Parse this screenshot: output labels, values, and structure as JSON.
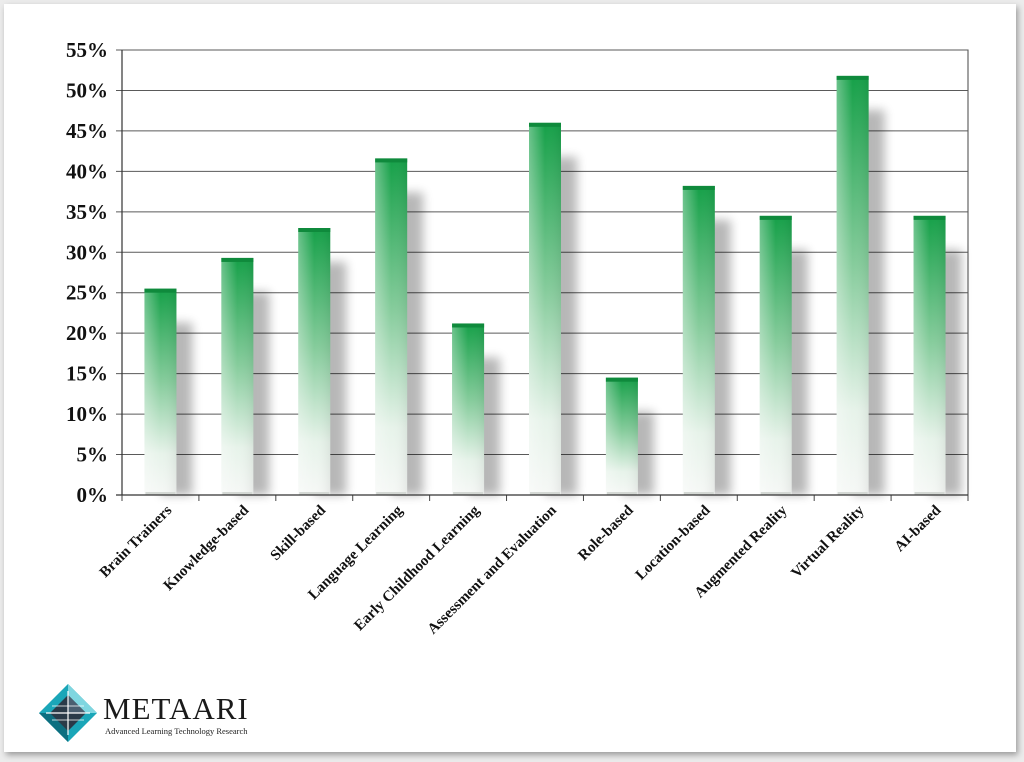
{
  "chart_data": {
    "type": "bar",
    "title": "",
    "xlabel": "",
    "ylabel": "",
    "categories": [
      "Brain Trainers",
      "Knowledge-based",
      "Skill-based",
      "Language Learning",
      "Early Childhood Learning",
      "Assessment and Evaluation",
      "Role-based",
      "Location-based",
      "Augmented Reality",
      "Virtual Reality",
      "AI-based"
    ],
    "values": [
      25.5,
      29.3,
      33.0,
      41.6,
      21.2,
      46.0,
      14.5,
      38.2,
      34.5,
      51.8,
      34.5
    ],
    "ylim": [
      0,
      55
    ],
    "yticks": [
      0,
      5,
      10,
      15,
      20,
      25,
      30,
      35,
      40,
      45,
      50,
      55
    ],
    "ytick_labels": [
      "0%",
      "5%",
      "10%",
      "15%",
      "20%",
      "25%",
      "30%",
      "35%",
      "40%",
      "45%",
      "50%",
      "55%"
    ],
    "grid": true,
    "legend": "none",
    "colors": {
      "bar_top": "#19a04a",
      "bar_bottom": "#f4f8f5",
      "grid": "#555555"
    }
  },
  "logo": {
    "name": "METAARI",
    "tagline": "Advanced Learning Technology Research",
    "colors": {
      "primary": "#1aa6b8",
      "dark": "#2a3a48"
    }
  }
}
